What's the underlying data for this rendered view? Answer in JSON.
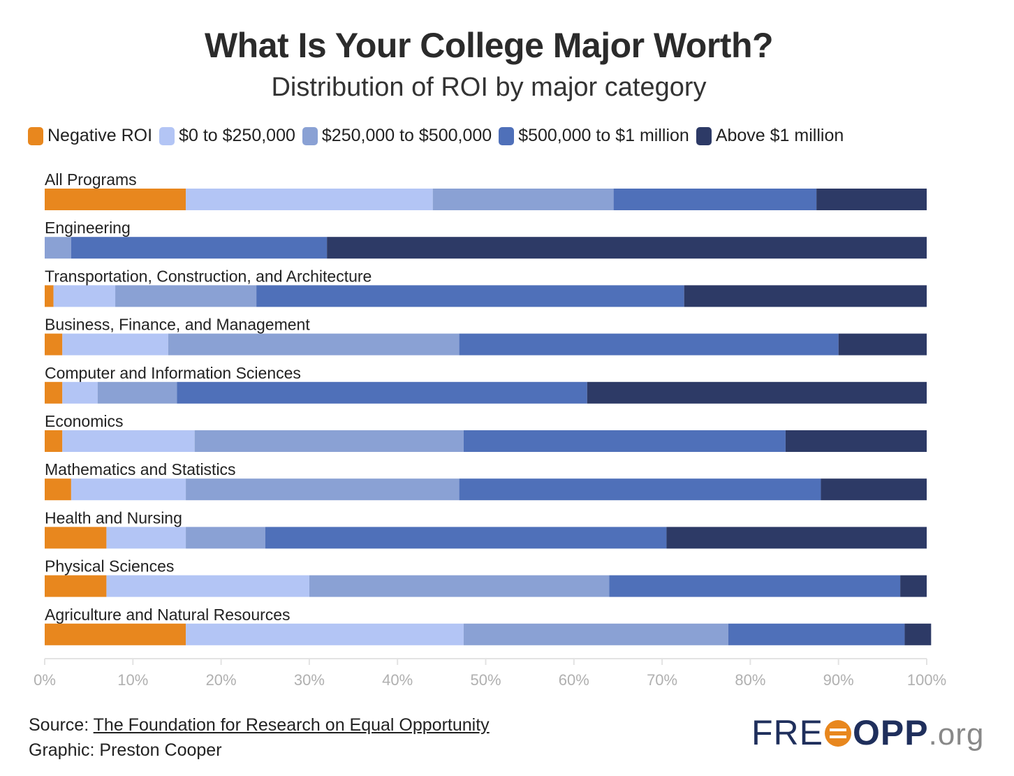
{
  "header": {
    "title": "What Is Your College Major Worth?",
    "subtitle": "Distribution of ROI by major category"
  },
  "legend": [
    {
      "label": "Negative ROI",
      "color": "#e8871e"
    },
    {
      "label": "$0 to $250,000",
      "color": "#b3c5f5"
    },
    {
      "label": "$250,000 to $500,000",
      "color": "#8aa1d4"
    },
    {
      "label": "$500,000 to $1 million",
      "color": "#4f70b9"
    },
    {
      "label": "Above $1 million",
      "color": "#2d3a66"
    }
  ],
  "chart_data": {
    "type": "bar",
    "orientation": "horizontal",
    "stacked": true,
    "title": "What Is Your College Major Worth?",
    "subtitle": "Distribution of ROI by major category",
    "xlim": [
      0,
      100
    ],
    "x_ticks": [
      "0%",
      "10%",
      "20%",
      "30%",
      "40%",
      "50%",
      "60%",
      "70%",
      "80%",
      "90%",
      "100%"
    ],
    "categories": [
      "All Programs",
      "Engineering",
      "Transportation, Construction, and  Architecture",
      "Business, Finance, and Management",
      "Computer and Information Sciences",
      "Economics",
      "Mathematics and Statistics",
      "Health and Nursing",
      "Physical Sciences",
      "Agriculture and Natural Resources"
    ],
    "series": [
      {
        "name": "Negative ROI",
        "color": "#e8871e",
        "values": [
          16,
          0,
          1,
          2,
          2,
          2,
          3,
          7,
          7,
          16
        ]
      },
      {
        "name": "$0 to $250,000",
        "color": "#b3c5f5",
        "values": [
          28,
          0,
          7,
          12,
          4,
          15,
          13,
          9,
          23,
          31.5
        ]
      },
      {
        "name": "$250,000 to $500,000",
        "color": "#8aa1d4",
        "values": [
          20.5,
          3,
          16,
          33,
          9,
          30.5,
          31,
          9,
          34,
          30
        ]
      },
      {
        "name": "$500,000 to $1 million",
        "color": "#4f70b9",
        "values": [
          23,
          29,
          48.5,
          43,
          46.5,
          36.5,
          41,
          45.5,
          33,
          20
        ]
      },
      {
        "name": "Above $1 million",
        "color": "#2d3a66",
        "values": [
          12.5,
          68,
          27.5,
          10,
          38.5,
          16,
          12,
          29.5,
          3,
          3
        ]
      }
    ]
  },
  "footer": {
    "source_label": "Source: ",
    "source_link": "The Foundation for Research on Equal Opportunity",
    "graphic_credit": "Graphic: Preston Cooper"
  },
  "logo": {
    "part1": "FRE",
    "part2": "OPP",
    "part3": ".org"
  }
}
